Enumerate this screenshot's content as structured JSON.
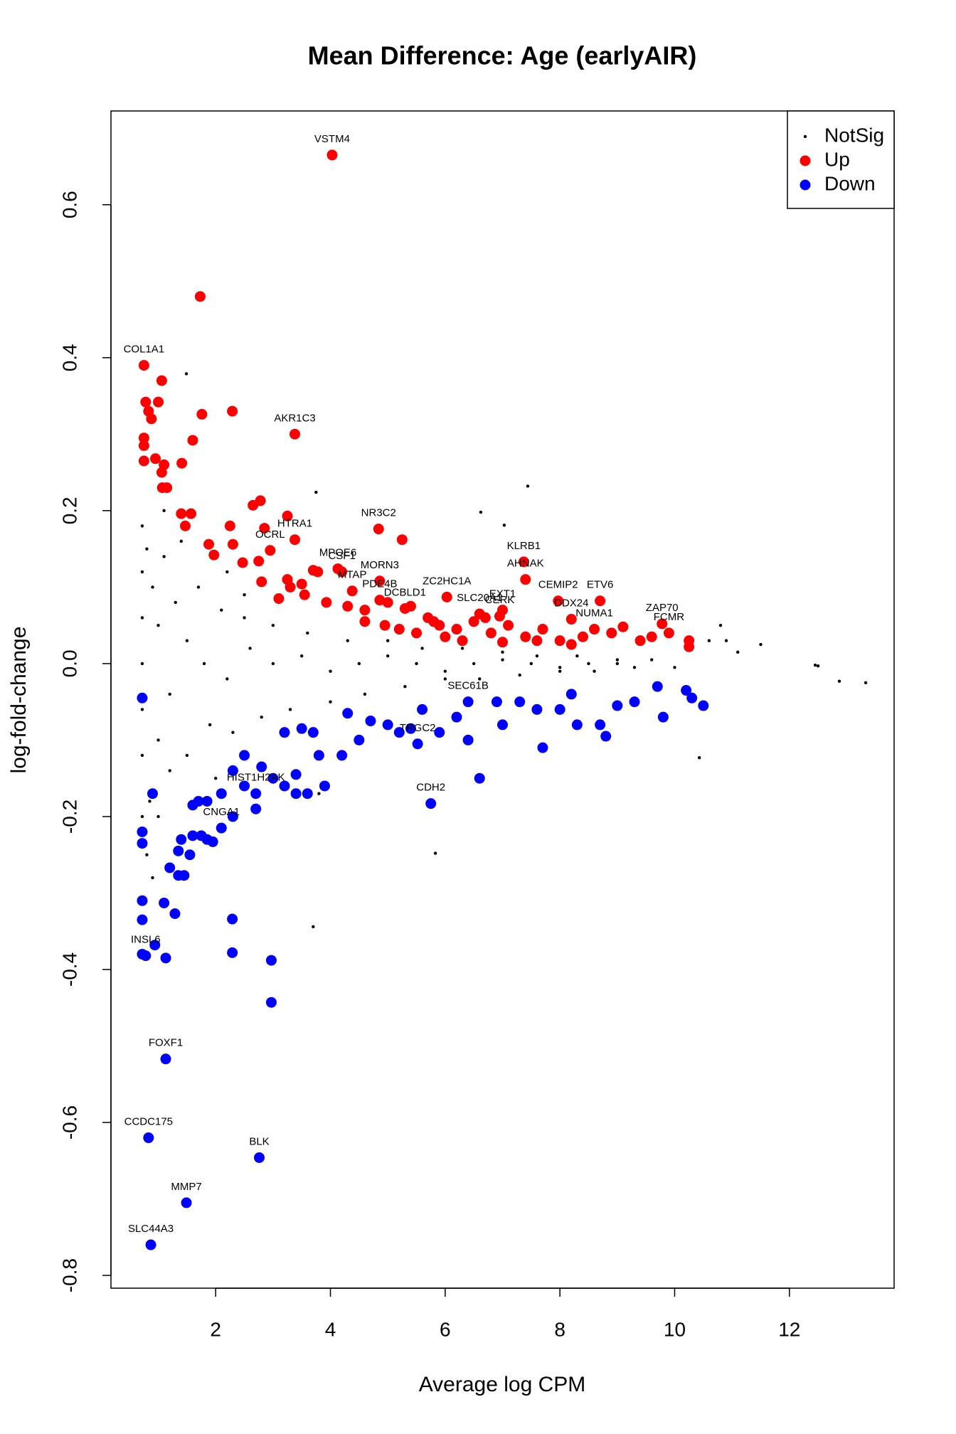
{
  "chart_data": {
    "type": "scatter",
    "title": "Mean Difference: Age (earlyAIR)",
    "x_label": "Average log CPM",
    "y_label": "log-fold-change",
    "xlim": [
      0.175,
      13.825
    ],
    "ylim": [
      -0.8167,
      0.7226
    ],
    "xticks": [
      2,
      4,
      6,
      8,
      10,
      12
    ],
    "yticks": [
      -0.8,
      -0.6,
      -0.4,
      -0.2,
      {
        "value": 0,
        "label": "0.0"
      },
      0.2,
      0.4,
      0.6
    ],
    "legend": "topright",
    "series": [
      {
        "name": "NotSig",
        "color": "#000000",
        "x": [
          13.33,
          12.87,
          12.5,
          12.45,
          11.5,
          11.1,
          10.9,
          10.8,
          10.6,
          7.44,
          6.62,
          7.03,
          5.83,
          3.7,
          1.49,
          10.43,
          3.75,
          0.72,
          0.72,
          0.72,
          0.72,
          0.72,
          0.72,
          0.72,
          0.8,
          0.85,
          0.9,
          1.0,
          1.1,
          1.2,
          1.3,
          1.5,
          1.7,
          1.9,
          2.1,
          2.3,
          2.5,
          2.8,
          3.0,
          3.3,
          3.6,
          4.0,
          4.3,
          4.6,
          5.0,
          5.3,
          5.6,
          6.0,
          6.3,
          6.6,
          7.0,
          7.3,
          7.6,
          8.0,
          8.3,
          8.6,
          9.0,
          9.3,
          9.6,
          10.0,
          1.0,
          1.2,
          1.5,
          1.8,
          2.2,
          2.6,
          3.0,
          3.5,
          4.0,
          4.5,
          5.0,
          5.5,
          6.0,
          6.5,
          7.0,
          7.5,
          8.0,
          8.5,
          9.0,
          0.9,
          1.1,
          1.4,
          0.8,
          1.0,
          3.8,
          2.2,
          2.0,
          2.5
        ],
        "values": [
          -0.025,
          -0.023,
          -0.003,
          -0.002,
          0.025,
          0.015,
          0.03,
          0.05,
          0.03,
          0.232,
          0.198,
          0.181,
          -0.248,
          -0.344,
          0.379,
          -0.123,
          0.224,
          0.18,
          0.12,
          0.06,
          0.0,
          -0.06,
          -0.12,
          -0.2,
          0.15,
          -0.18,
          0.1,
          -0.1,
          0.14,
          -0.14,
          0.08,
          -0.12,
          0.1,
          -0.08,
          0.07,
          -0.09,
          0.06,
          -0.07,
          0.05,
          -0.06,
          0.04,
          -0.05,
          0.03,
          -0.04,
          0.03,
          -0.03,
          0.02,
          -0.02,
          0.02,
          -0.02,
          0.015,
          -0.015,
          0.01,
          -0.01,
          0.01,
          -0.01,
          0.005,
          -0.005,
          0.005,
          -0.005,
          0.05,
          -0.04,
          0.03,
          0.0,
          -0.02,
          0.02,
          0.0,
          0.01,
          -0.01,
          0.0,
          0.01,
          0.0,
          -0.01,
          0.0,
          0.005,
          0.0,
          -0.005,
          0.0,
          0.0,
          -0.28,
          0.2,
          0.16,
          -0.25,
          -0.2,
          -0.17,
          0.12,
          -0.15,
          0.09
        ]
      },
      {
        "name": "Up",
        "color": "#ff0000",
        "x": [
          4.03,
          0.75,
          3.38,
          4.84,
          3.38,
          2.95,
          4.13,
          4.2,
          4.86,
          4.38,
          4.86,
          5.3,
          6.03,
          7.37,
          7.4,
          7.97,
          8.7,
          8.2,
          8.6,
          9.78,
          9.9,
          6.6,
          7.0,
          6.95,
          1.73,
          1.06,
          1.76,
          2.29,
          0.78,
          1.0,
          0.83,
          0.88,
          0.75,
          0.75,
          0.75,
          0.95,
          1.06,
          1.1,
          1.07,
          1.15,
          1.41,
          1.6,
          1.4,
          1.57,
          1.47,
          2.65,
          2.78,
          3.25,
          2.25,
          2.85,
          1.88,
          1.97,
          2.3,
          2.47,
          2.75,
          5.25,
          3.7,
          3.78,
          2.8,
          3.3,
          3.5,
          3.25,
          3.1,
          3.55,
          3.93,
          4.3,
          4.6,
          5.0,
          5.4,
          5.7,
          5.9,
          6.2,
          6.5,
          6.8,
          7.1,
          7.4,
          7.7,
          8.0,
          8.4,
          8.9,
          9.1,
          9.4,
          10.25,
          10.25,
          9.6,
          4.95,
          5.2,
          5.5,
          6.0,
          6.3,
          7.0,
          7.6,
          8.2,
          4.6,
          6.7,
          5.8
        ],
        "values": [
          0.665,
          0.39,
          0.3,
          0.176,
          0.162,
          0.148,
          0.124,
          0.12,
          0.108,
          0.095,
          0.083,
          0.072,
          0.087,
          0.133,
          0.11,
          0.082,
          0.082,
          0.058,
          0.045,
          0.052,
          0.04,
          0.065,
          0.07,
          0.062,
          0.48,
          0.37,
          0.326,
          0.33,
          0.342,
          0.342,
          0.33,
          0.32,
          0.295,
          0.285,
          0.265,
          0.268,
          0.25,
          0.26,
          0.23,
          0.23,
          0.262,
          0.292,
          0.196,
          0.196,
          0.18,
          0.207,
          0.213,
          0.193,
          0.18,
          0.177,
          0.156,
          0.142,
          0.156,
          0.132,
          0.134,
          0.162,
          0.122,
          0.12,
          0.107,
          0.1,
          0.104,
          0.11,
          0.085,
          0.09,
          0.08,
          0.075,
          0.07,
          0.08,
          0.075,
          0.06,
          0.05,
          0.045,
          0.055,
          0.04,
          0.05,
          0.035,
          0.045,
          0.03,
          0.035,
          0.04,
          0.048,
          0.03,
          0.03,
          0.022,
          0.035,
          0.05,
          0.045,
          0.04,
          0.035,
          0.03,
          0.028,
          0.03,
          0.025,
          0.055,
          0.06,
          0.055
        ],
        "labels": [
          "VSTM4",
          "COL1A1",
          "AKR1C3",
          "NR3C2",
          "HTRA1",
          "OCRL",
          "MPOE6",
          "CSF1",
          "MORN3",
          "MTAP",
          "PDE4B",
          "DCBLD1",
          "ZC2HC1A",
          "KLRB1",
          "AHNAK",
          "CEMIP2",
          "ETV6",
          "DDX24",
          "NUMA1",
          "ZAP70",
          "FCMR",
          "SLC20A1",
          "EXT1",
          "CERK",
          null,
          null,
          null,
          null,
          null,
          null,
          null,
          null,
          null,
          null,
          null,
          null,
          null,
          null,
          null,
          null,
          null,
          null,
          null,
          null,
          null,
          null,
          null,
          null,
          null,
          null,
          null,
          null,
          null,
          null,
          null,
          null,
          null,
          null,
          null,
          null,
          null,
          null,
          null,
          null,
          null,
          null,
          null,
          null,
          null,
          null,
          null,
          null,
          null,
          null,
          null,
          null,
          null,
          null,
          null,
          null,
          null,
          null,
          null,
          null,
          null,
          null,
          null,
          null,
          null,
          null,
          null,
          null,
          null,
          null,
          null,
          null
        ]
      },
      {
        "name": "Down",
        "color": "#0000ff",
        "x": [
          5.75,
          2.1,
          0.78,
          1.13,
          0.83,
          2.76,
          1.49,
          0.87,
          2.7,
          5.52,
          6.4,
          2.97,
          2.97,
          2.29,
          2.29,
          0.72,
          1.1,
          1.29,
          1.13,
          0.94,
          0.72,
          0.72,
          0.72,
          0.72,
          0.72,
          0.9,
          1.2,
          1.35,
          1.45,
          1.35,
          1.55,
          1.4,
          1.6,
          1.75,
          1.85,
          1.95,
          1.6,
          1.7,
          1.85,
          2.1,
          2.3,
          2.5,
          2.7,
          2.3,
          2.5,
          2.8,
          3.0,
          3.2,
          3.4,
          3.6,
          3.4,
          3.8,
          3.9,
          3.2,
          3.5,
          3.7,
          4.2,
          4.5,
          4.7,
          5.0,
          5.2,
          5.4,
          5.9,
          6.2,
          6.6,
          6.4,
          7.0,
          7.3,
          7.6,
          7.7,
          8.0,
          8.3,
          8.7,
          8.8,
          9.0,
          9.3,
          9.7,
          9.8,
          10.2,
          10.5,
          10.3,
          6.9,
          5.6,
          4.3,
          8.2
        ],
        "values": [
          -0.183,
          -0.215,
          -0.382,
          -0.517,
          -0.62,
          -0.646,
          -0.705,
          -0.76,
          -0.17,
          -0.105,
          -0.05,
          -0.388,
          -0.443,
          -0.334,
          -0.378,
          -0.31,
          -0.313,
          -0.327,
          -0.385,
          -0.368,
          -0.335,
          -0.38,
          -0.045,
          -0.22,
          -0.235,
          -0.17,
          -0.267,
          -0.277,
          -0.277,
          -0.245,
          -0.25,
          -0.23,
          -0.225,
          -0.225,
          -0.23,
          -0.233,
          -0.185,
          -0.18,
          -0.18,
          -0.17,
          -0.2,
          -0.16,
          -0.19,
          -0.14,
          -0.12,
          -0.135,
          -0.15,
          -0.16,
          -0.145,
          -0.17,
          -0.17,
          -0.12,
          -0.16,
          -0.09,
          -0.085,
          -0.09,
          -0.12,
          -0.1,
          -0.075,
          -0.08,
          -0.09,
          -0.085,
          -0.09,
          -0.07,
          -0.15,
          -0.1,
          -0.08,
          -0.05,
          -0.06,
          -0.11,
          -0.06,
          -0.08,
          -0.08,
          -0.095,
          -0.055,
          -0.05,
          -0.03,
          -0.07,
          -0.035,
          -0.055,
          -0.045,
          -0.05,
          -0.06,
          -0.065,
          -0.04
        ],
        "labels": [
          "CDH2",
          "CNGA1",
          "INSL6",
          "FOXF1",
          "CCDC175",
          "BLK",
          "MMP7",
          "SLC44A3",
          "HIST1H2AK",
          "TRGC2",
          "SEC61B",
          null,
          null,
          null,
          null,
          null,
          null,
          null,
          null,
          null,
          null,
          null,
          null,
          null,
          null,
          null,
          null,
          null,
          null,
          null,
          null,
          null,
          null,
          null,
          null,
          null,
          null,
          null,
          null,
          null,
          null,
          null,
          null,
          null,
          null,
          null,
          null,
          null,
          null,
          null,
          null,
          null,
          null,
          null,
          null,
          null,
          null,
          null,
          null,
          null,
          null,
          null,
          null,
          null,
          null,
          null,
          null,
          null,
          null,
          null,
          null,
          null,
          null,
          null,
          null,
          null,
          null,
          null,
          null,
          null,
          null,
          null,
          null,
          null,
          null
        ]
      }
    ]
  }
}
